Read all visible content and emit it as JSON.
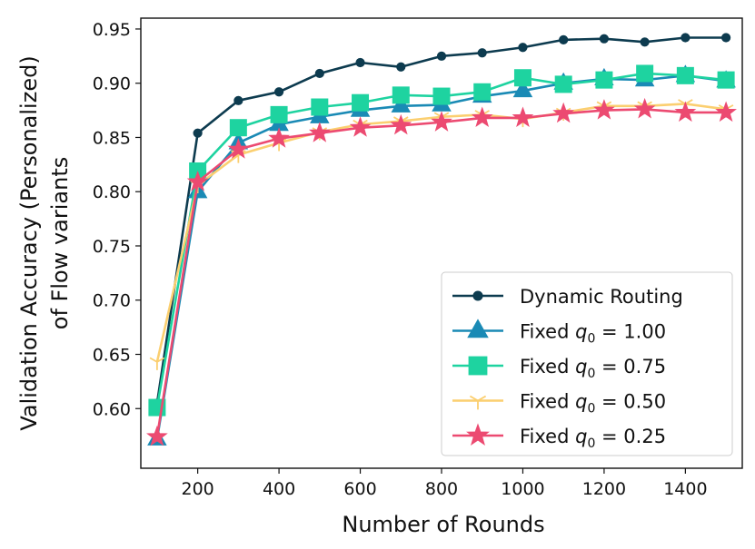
{
  "chart_data": {
    "type": "line",
    "title": "",
    "xlabel": "Number of Rounds",
    "ylabel_lines": [
      "Validation Accuracy (Personalized)",
      "of Flow variants"
    ],
    "xlim": [
      60,
      1540
    ],
    "ylim": [
      0.545,
      0.96
    ],
    "xticks": [
      200,
      400,
      600,
      800,
      1000,
      1200,
      1400
    ],
    "yticks": [
      0.6,
      0.65,
      0.7,
      0.75,
      0.8,
      0.85,
      0.9,
      0.95
    ],
    "x": [
      100,
      200,
      300,
      400,
      500,
      600,
      700,
      800,
      900,
      1000,
      1100,
      1200,
      1300,
      1400,
      1500
    ],
    "legend_position": "lower-right",
    "series": [
      {
        "name": "Dynamic Routing",
        "legend_label": "Dynamic Routing",
        "color": "#0d3b4f",
        "marker": "circle",
        "values": [
          0.605,
          0.854,
          0.884,
          0.892,
          0.909,
          0.919,
          0.915,
          0.925,
          0.928,
          0.933,
          0.94,
          0.941,
          0.938,
          0.942,
          0.942
        ]
      },
      {
        "name": "Fixed q0 = 1.00",
        "legend_label": "Fixed",
        "legend_value": " = 1.00",
        "color": "#1a8ab5",
        "marker": "triangle",
        "values": [
          0.572,
          0.8,
          0.845,
          0.862,
          0.869,
          0.875,
          0.879,
          0.88,
          0.888,
          0.893,
          0.9,
          0.904,
          0.903,
          0.907,
          0.902
        ]
      },
      {
        "name": "Fixed q0 = 0.75",
        "legend_label": "Fixed",
        "legend_value": " = 0.75",
        "color": "#1ed3a0",
        "marker": "square",
        "values": [
          0.601,
          0.819,
          0.859,
          0.871,
          0.878,
          0.882,
          0.889,
          0.888,
          0.892,
          0.905,
          0.899,
          0.903,
          0.909,
          0.907,
          0.903
        ]
      },
      {
        "name": "Fixed q0 = 0.50",
        "legend_label": "Fixed",
        "legend_value": " = 0.50",
        "color": "#fbcf70",
        "marker": "tri-down",
        "values": [
          0.643,
          0.806,
          0.834,
          0.845,
          0.855,
          0.862,
          0.865,
          0.869,
          0.871,
          0.867,
          0.873,
          0.879,
          0.879,
          0.881,
          0.876
        ]
      },
      {
        "name": "Fixed q0 = 0.25",
        "legend_label": "Fixed",
        "legend_value": " = 0.25",
        "color": "#ec4a71",
        "marker": "star",
        "values": [
          0.574,
          0.809,
          0.839,
          0.849,
          0.854,
          0.859,
          0.861,
          0.864,
          0.868,
          0.868,
          0.872,
          0.875,
          0.876,
          0.873,
          0.873
        ]
      }
    ]
  }
}
